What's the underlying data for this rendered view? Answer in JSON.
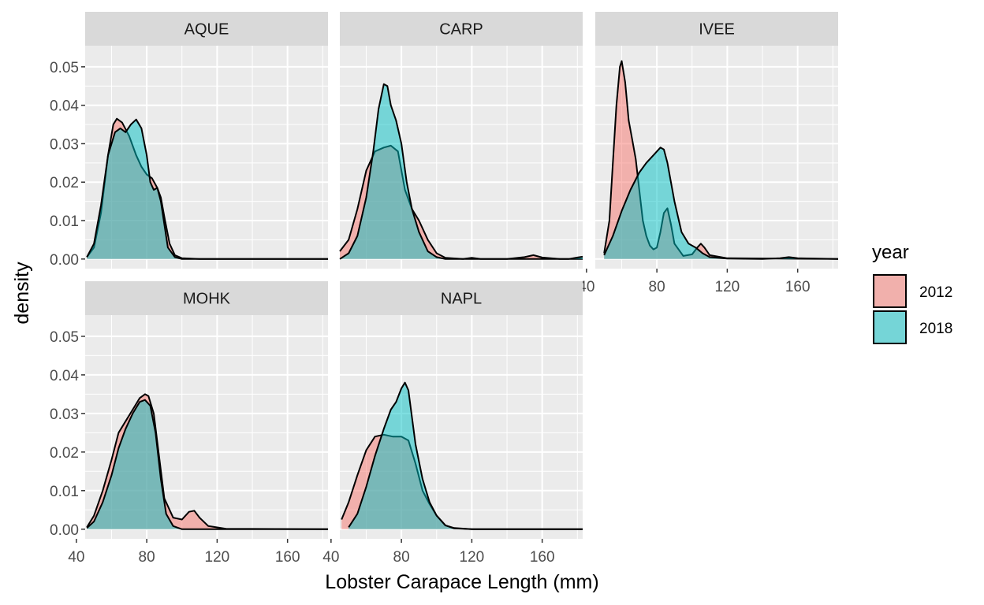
{
  "chart_data": {
    "type": "area",
    "subtype": "density",
    "xlabel": "Lobster Carapace Length (mm)",
    "ylabel": "density",
    "xlim": [
      45,
      183
    ],
    "ylim": [
      -0.0025,
      0.0555
    ],
    "x_ticks": [
      40,
      80,
      120,
      160
    ],
    "y_ticks": [
      0.0,
      0.01,
      0.02,
      0.03,
      0.04,
      0.05
    ],
    "y_tick_labels": [
      "0.00",
      "0.01",
      "0.02",
      "0.03",
      "0.04",
      "0.05"
    ],
    "grid": true,
    "legend": {
      "title": "year",
      "placement": "right",
      "entries": [
        {
          "name": "2012",
          "color": "#F8766D"
        },
        {
          "name": "2018",
          "color": "#00BFC4"
        }
      ]
    },
    "fill_alpha": 0.5,
    "panels": [
      {
        "name": "AQUE",
        "series": [
          {
            "name": "2012",
            "x": [
              46,
              50,
              54,
              58,
              61,
              63,
              66,
              70,
              74,
              77,
              80,
              83,
              86,
              88,
              90,
              93,
              96,
              100,
              110,
              140,
              183
            ],
            "y": [
              0.0005,
              0.003,
              0.012,
              0.027,
              0.035,
              0.0365,
              0.0355,
              0.032,
              0.027,
              0.024,
              0.022,
              0.021,
              0.0185,
              0.016,
              0.011,
              0.004,
              0.001,
              0.0002,
              0,
              0,
              0
            ]
          },
          {
            "name": "2018",
            "x": [
              46,
              50,
              54,
              58,
              62,
              65,
              68,
              71,
              74,
              77,
              80,
              82,
              84,
              86,
              88,
              92,
              96,
              100,
              110,
              140,
              183
            ],
            "y": [
              0.0005,
              0.004,
              0.014,
              0.027,
              0.033,
              0.034,
              0.033,
              0.035,
              0.0363,
              0.034,
              0.027,
              0.02,
              0.018,
              0.0185,
              0.015,
              0.003,
              0.0005,
              0,
              0,
              0,
              0
            ]
          }
        ]
      },
      {
        "name": "CARP",
        "series": [
          {
            "name": "2012",
            "x": [
              45,
              50,
              55,
              60,
              65,
              70,
              74,
              78,
              82,
              86,
              90,
              95,
              100,
              105,
              115,
              120,
              125,
              140,
              150,
              155,
              160,
              170,
              183
            ],
            "y": [
              0.002,
              0.005,
              0.013,
              0.023,
              0.028,
              0.029,
              0.0295,
              0.028,
              0.018,
              0.013,
              0.01,
              0.005,
              0.0015,
              0.0003,
              0,
              0.0003,
              0,
              0,
              0.0005,
              0.001,
              0.0004,
              0,
              0
            ]
          },
          {
            "name": "2018",
            "x": [
              45,
              50,
              55,
              60,
              64,
              67,
              70,
              72,
              74,
              77,
              80,
              83,
              86,
              90,
              95,
              100,
              105,
              120,
              150,
              175,
              180,
              183
            ],
            "y": [
              0,
              0.0015,
              0.006,
              0.016,
              0.028,
              0.039,
              0.0455,
              0.045,
              0.04,
              0.036,
              0.03,
              0.02,
              0.013,
              0.007,
              0.002,
              0.0005,
              0,
              0,
              0,
              0,
              0.0004,
              0.0006
            ]
          }
        ]
      },
      {
        "name": "IVEE",
        "series": [
          {
            "name": "2012",
            "x": [
              50,
              53,
              55,
              57,
              59,
              60,
              62,
              64,
              66,
              68,
              70,
              72,
              74,
              76,
              78,
              80,
              82,
              84,
              86,
              88,
              90,
              95,
              100,
              103,
              105,
              107,
              110,
              120,
              183
            ],
            "y": [
              0.0015,
              0.01,
              0.025,
              0.04,
              0.05,
              0.0515,
              0.046,
              0.036,
              0.031,
              0.026,
              0.018,
              0.01,
              0.006,
              0.0035,
              0.0025,
              0.003,
              0.007,
              0.012,
              0.0132,
              0.009,
              0.004,
              0.0008,
              0.0012,
              0.003,
              0.004,
              0.003,
              0.001,
              0.0002,
              0
            ]
          },
          {
            "name": "2018",
            "x": [
              50,
              55,
              60,
              65,
              70,
              74,
              78,
              82,
              84,
              86,
              90,
              94,
              98,
              102,
              106,
              110,
              120,
              140,
              150,
              155,
              160,
              183
            ],
            "y": [
              0.001,
              0.006,
              0.0125,
              0.018,
              0.0225,
              0.025,
              0.027,
              0.029,
              0.0285,
              0.025,
              0.015,
              0.007,
              0.004,
              0.003,
              0.0015,
              0.0005,
              0.0001,
              0,
              0.0002,
              0.0005,
              0.0002,
              0
            ]
          }
        ]
      },
      {
        "name": "MOHK",
        "series": [
          {
            "name": "2012",
            "x": [
              46,
              50,
              55,
              60,
              64,
              68,
              72,
              76,
              79,
              81,
              84,
              87,
              90,
              95,
              100,
              104,
              107,
              110,
              115,
              125,
              183
            ],
            "y": [
              0.0005,
              0.0035,
              0.01,
              0.018,
              0.025,
              0.028,
              0.031,
              0.034,
              0.035,
              0.0345,
              0.03,
              0.019,
              0.008,
              0.003,
              0.0025,
              0.0045,
              0.0048,
              0.003,
              0.0008,
              0.0001,
              0
            ]
          },
          {
            "name": "2018",
            "x": [
              46,
              50,
              55,
              60,
              64,
              68,
              72,
              76,
              79,
              82,
              85,
              88,
              91,
              95,
              100,
              183
            ],
            "y": [
              0.0003,
              0.002,
              0.007,
              0.014,
              0.021,
              0.026,
              0.03,
              0.033,
              0.0335,
              0.032,
              0.025,
              0.013,
              0.004,
              0.0008,
              0,
              0
            ]
          }
        ]
      },
      {
        "name": "NAPL",
        "series": [
          {
            "name": "2012",
            "x": [
              46,
              50,
              55,
              60,
              65,
              70,
              75,
              80,
              84,
              88,
              92,
              96,
              100,
              105,
              110,
              120,
              183
            ],
            "y": [
              0.0025,
              0.007,
              0.014,
              0.0205,
              0.024,
              0.0245,
              0.024,
              0.024,
              0.023,
              0.017,
              0.01,
              0.0065,
              0.0035,
              0.001,
              0.0003,
              0,
              0
            ]
          },
          {
            "name": "2018",
            "x": [
              50,
              55,
              60,
              65,
              70,
              74,
              77,
              80,
              82,
              84,
              86,
              88,
              92,
              96,
              100,
              105,
              110,
              120,
              183
            ],
            "y": [
              0.0005,
              0.004,
              0.011,
              0.019,
              0.026,
              0.031,
              0.033,
              0.0365,
              0.038,
              0.036,
              0.029,
              0.022,
              0.013,
              0.007,
              0.0035,
              0.001,
              0.0002,
              0,
              0
            ]
          }
        ]
      }
    ]
  }
}
